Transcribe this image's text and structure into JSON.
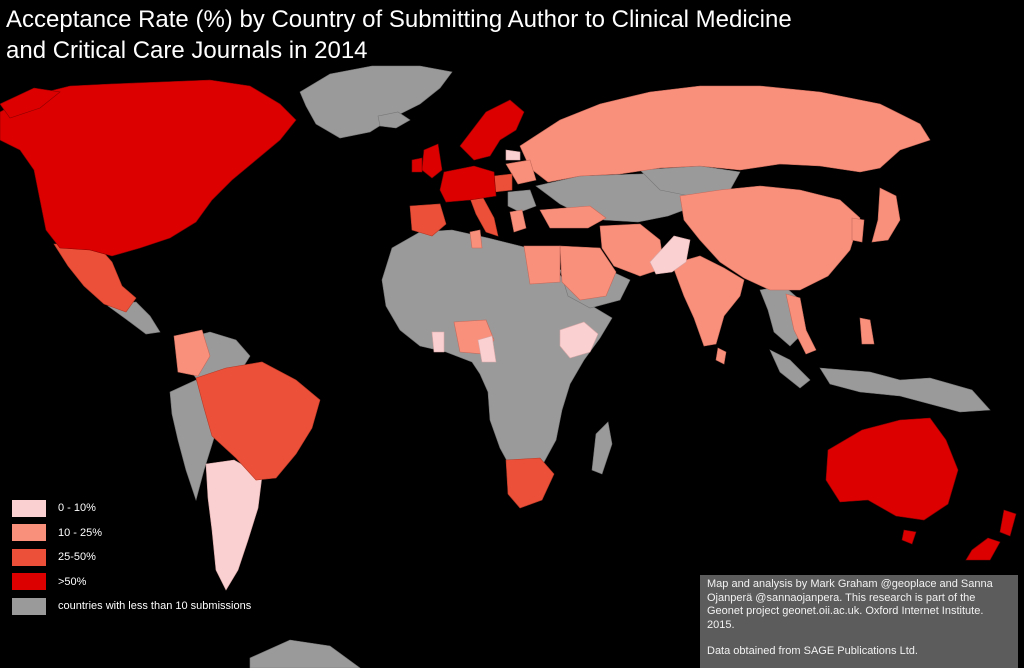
{
  "title": {
    "line1": "Acceptance Rate (%) by Country of Submitting Author to Clinical Medicine",
    "line2": "and Critical Care Journals in 2014"
  },
  "colors": {
    "background": "#000000",
    "no_data": "#9a9a9a",
    "cat_0_10": "#fbd0d0",
    "cat_10_25": "#f8907c",
    "cat_25_50": "#ec5038",
    "cat_50_plus": "#dc0000"
  },
  "legend": {
    "items": [
      {
        "label": "0 - 10%",
        "color": "#fbd0d0"
      },
      {
        "label": "10 - 25%",
        "color": "#f8907c"
      },
      {
        "label": "25-50%",
        "color": "#ec5038"
      },
      {
        "label": ">50%",
        "color": "#dc0000"
      },
      {
        "label": "countries with less than 10 submissions",
        "color": "#9a9a9a"
      }
    ]
  },
  "credit": {
    "text": "Map and analysis by Mark Graham @geoplace and Sanna Ojanperä @sannaojanpera. This research is part of the Geonet project geonet.oii.ac.uk. Oxford Internet Institute. 2015.",
    "source": "Data obtained from SAGE Publications Ltd."
  }
}
